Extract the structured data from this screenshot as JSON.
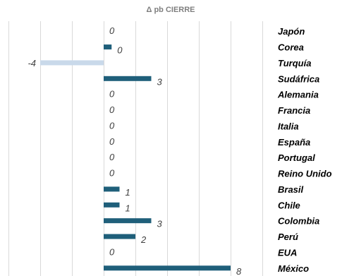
{
  "chart_data": {
    "type": "bar",
    "orientation": "horizontal",
    "title": "Δ pb CIERRE",
    "categories": [
      "Japón",
      "Corea",
      "Turquía",
      "Sudáfrica",
      "Alemania",
      "Francia",
      "Italia",
      "España",
      "Portugal",
      "Reino Unido",
      "Brasil",
      "Chile",
      "Colombia",
      "Perú",
      "EUA",
      "México"
    ],
    "values": [
      0,
      0.5,
      -4,
      3,
      0,
      0,
      0,
      0,
      0,
      0,
      1,
      1,
      3,
      2,
      0,
      8
    ],
    "labels": [
      "0",
      "0",
      "-4",
      "3",
      "0",
      "0",
      "0",
      "0",
      "0",
      "0",
      "1",
      "1",
      "3",
      "2",
      "0",
      "8"
    ],
    "xlim": [
      -6,
      10
    ],
    "grid": true,
    "colors": {
      "positive": "#1f5f7a",
      "negative": "#c9d9ea"
    }
  }
}
